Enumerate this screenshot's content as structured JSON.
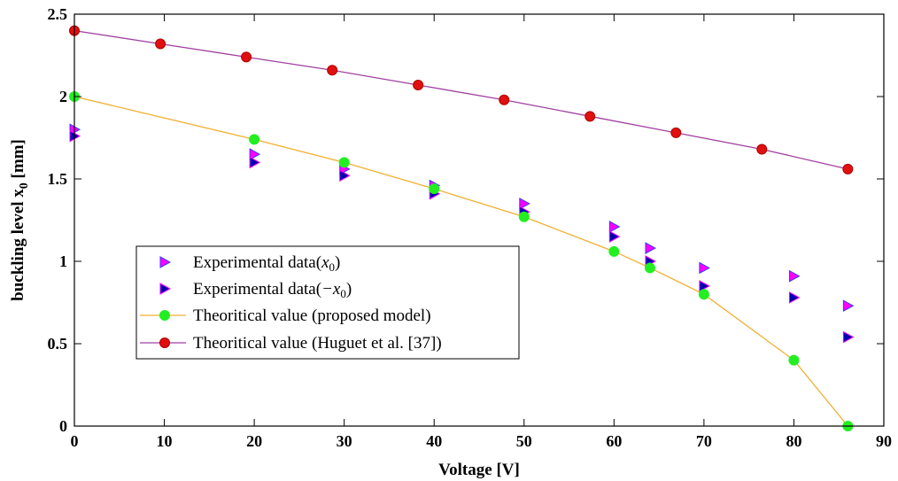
{
  "chart_data": {
    "type": "scatter",
    "title": "",
    "xlabel": "Voltage [V]",
    "ylabel": "buckling level x",
    "ylabel_subscript": "0",
    "ylabel_unit": " [mm]",
    "xlim": [
      0,
      90
    ],
    "ylim": [
      0,
      2.5
    ],
    "xticks": [
      0,
      10,
      20,
      30,
      40,
      50,
      60,
      70,
      80,
      90
    ],
    "yticks": [
      0,
      0.5,
      1,
      1.5,
      2,
      2.5
    ],
    "xtick_labels": [
      "0",
      "10",
      "20",
      "30",
      "40",
      "50",
      "60",
      "70",
      "80",
      "90"
    ],
    "ytick_labels": [
      "0",
      "0.5",
      "1",
      "1.5",
      "2",
      "2.5"
    ],
    "grid": false,
    "legend_position": "lower-left",
    "series": [
      {
        "name": "Experimental data(x0)",
        "legend_text": "Experimental data(",
        "legend_math": "x",
        "legend_sub": "0",
        "legend_close": ")",
        "marker": "triangle-right",
        "fill": "#ff00ff",
        "edge": "#3a3aff",
        "line": false,
        "x": [
          0,
          20,
          30,
          40,
          50,
          60,
          64,
          70,
          80,
          86
        ],
        "y": [
          1.8,
          1.65,
          1.56,
          1.46,
          1.35,
          1.21,
          1.08,
          0.96,
          0.91,
          0.73
        ]
      },
      {
        "name": "Experimental data(-x0)",
        "legend_text": "Experimental data(",
        "legend_math": "−x",
        "legend_sub": "0",
        "legend_close": ")",
        "marker": "triangle-right",
        "fill": "#0000b0",
        "edge": "#ff00ff",
        "line": false,
        "x": [
          0,
          20,
          30,
          40,
          50,
          60,
          64,
          70,
          80,
          86
        ],
        "y": [
          1.76,
          1.6,
          1.52,
          1.41,
          1.3,
          1.15,
          1.0,
          0.85,
          0.78,
          0.54
        ]
      },
      {
        "name": "Theoritical value (proposed model)",
        "legend_text": "Theoritical value (proposed model)",
        "marker": "circle",
        "fill": "#22ee22",
        "edge": "#22ee22",
        "line": true,
        "line_color": "#f0b030",
        "x": [
          0,
          20,
          30,
          40,
          50,
          60,
          64,
          70,
          80,
          86
        ],
        "y": [
          2.0,
          1.74,
          1.6,
          1.44,
          1.27,
          1.06,
          0.96,
          0.8,
          0.4,
          0.0
        ]
      },
      {
        "name": "Theoritical value (Huguet et al. [37])",
        "legend_text": "Theoritical value (Huguet et al. [37])",
        "marker": "circle",
        "fill": "#e01010",
        "edge": "#b00000",
        "line": true,
        "line_color": "#a040a0",
        "x": [
          0,
          9.56,
          19.11,
          28.67,
          38.22,
          47.78,
          57.33,
          66.89,
          76.44,
          86
        ],
        "y": [
          2.4,
          2.32,
          2.24,
          2.16,
          2.07,
          1.98,
          1.88,
          1.78,
          1.68,
          1.56
        ]
      }
    ]
  }
}
